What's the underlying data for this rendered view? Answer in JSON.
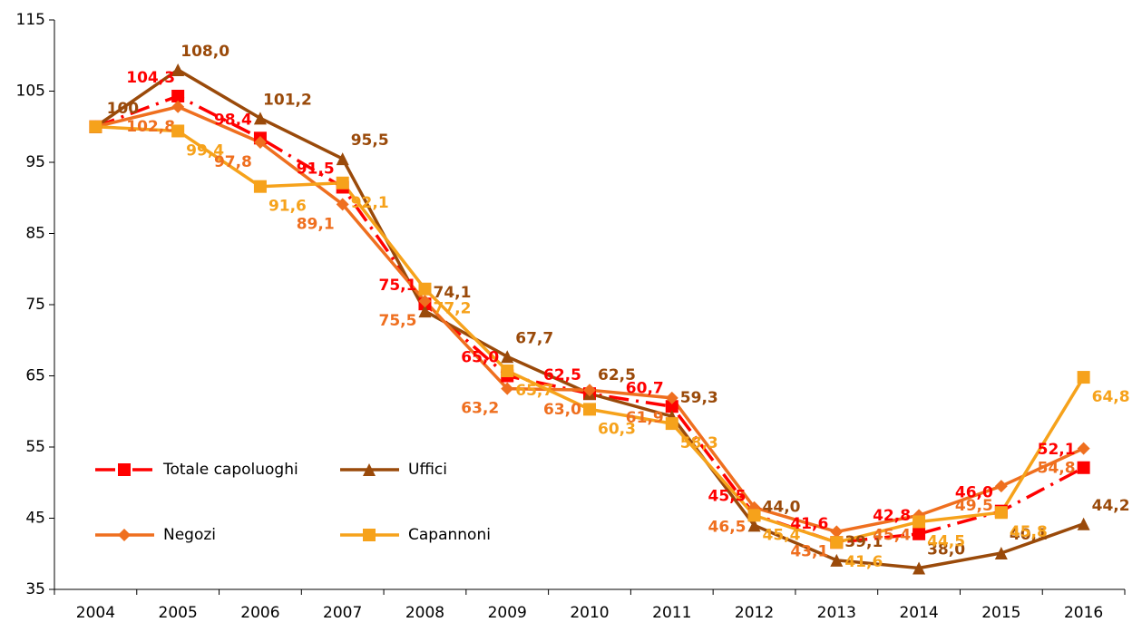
{
  "chart_data": {
    "type": "line",
    "categories": [
      "2004",
      "2005",
      "2006",
      "2007",
      "2008",
      "2009",
      "2010",
      "2011",
      "2012",
      "2013",
      "2014",
      "2015",
      "2016"
    ],
    "series": [
      {
        "name": "Totale capoluoghi",
        "color": "#ff0000",
        "marker": "square",
        "dash": true,
        "values": [
          100,
          104.3,
          98.4,
          91.5,
          75.1,
          65.0,
          62.5,
          60.7,
          45.5,
          41.6,
          42.8,
          46.0,
          52.1
        ],
        "value_labels": [
          null,
          "104,3",
          "98,4",
          "91,5",
          "75,1",
          "65,0",
          "62,5",
          "60,7",
          "45,5",
          "41,6",
          "42,8",
          "46,0",
          "52,1"
        ]
      },
      {
        "name": "Uffici",
        "color": "#9a4a0a",
        "marker": "triangle",
        "values": [
          100,
          108.0,
          101.2,
          95.5,
          74.1,
          67.7,
          62.5,
          59.3,
          44.0,
          39.1,
          38.0,
          40.1,
          44.2
        ],
        "value_labels": [
          "100",
          "108,0",
          "101,2",
          "95,5",
          "74,1",
          "67,7",
          "62,5",
          "59,3",
          "44,0",
          "39,1",
          "38,0",
          "40,1",
          "44,2"
        ]
      },
      {
        "name": "Negozi",
        "color": "#ef6f1f",
        "marker": "diamond",
        "values": [
          100,
          102.8,
          97.8,
          89.1,
          75.5,
          63.2,
          63.0,
          61.9,
          46.5,
          43.1,
          45.4,
          49.5,
          54.8
        ],
        "value_labels": [
          null,
          "102,8",
          "97,8",
          "89,1",
          "75,5",
          "63,2",
          "63,0",
          "61,9",
          "46,5",
          "43,1",
          "45,4",
          "49,5",
          "54,8"
        ]
      },
      {
        "name": "Capannoni",
        "color": "#f6a21b",
        "marker": "square",
        "values": [
          100,
          99.4,
          91.6,
          92.1,
          77.2,
          65.7,
          60.3,
          58.3,
          45.4,
          41.6,
          44.5,
          45.8,
          64.8
        ],
        "value_labels": [
          null,
          "99,4",
          "91,6",
          "92,1",
          "77,2",
          "65,7",
          "60,3",
          "58,3",
          "45,4",
          "41,6",
          "44,5",
          "45,8",
          "64,8"
        ]
      }
    ],
    "ylim": [
      35,
      115
    ],
    "yticks": [
      35,
      45,
      55,
      65,
      75,
      85,
      95,
      105,
      115
    ],
    "legend": "lower left"
  }
}
